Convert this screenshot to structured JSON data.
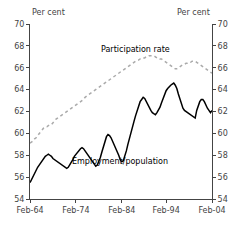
{
  "chart_data": {
    "type": "line",
    "ylabel": "Per cent",
    "y2label": "Per cent",
    "categories": [
      "Feb-64",
      null,
      null,
      null,
      null,
      null,
      null,
      null,
      null,
      null,
      null,
      null,
      null,
      null,
      null,
      null,
      null,
      null,
      null,
      null,
      null,
      null,
      null,
      null,
      null,
      null,
      null,
      null,
      null,
      null,
      "Feb-74",
      null,
      null,
      null,
      null,
      null,
      null,
      null,
      null,
      null,
      null,
      null,
      null,
      null,
      null,
      null,
      null,
      null,
      null,
      null,
      null,
      null,
      null,
      null,
      null,
      null,
      null,
      null,
      null,
      null,
      "Feb-84",
      null,
      null,
      null,
      null,
      null,
      null,
      null,
      null,
      null,
      null,
      null,
      null,
      null,
      null,
      null,
      null,
      null,
      null,
      null,
      null,
      null,
      null,
      null,
      null,
      null,
      null,
      null,
      null,
      "Feb-94",
      null,
      null,
      null,
      null,
      null,
      null,
      null,
      null,
      null,
      null,
      null,
      null,
      null,
      null,
      null,
      null,
      null,
      null,
      null,
      null,
      null,
      null,
      null,
      null,
      null,
      null,
      null,
      null,
      null,
      "Feb-04"
    ],
    "series": [
      {
        "name": "Participation rate",
        "color": "#aaaaaa",
        "line_style": "dotted",
        "values": [
          59.1,
          59.2,
          59.3,
          59.5,
          59.6,
          59.8,
          60.0,
          60.1,
          60.3,
          60.5,
          60.6,
          60.6,
          60.7,
          60.8,
          60.8,
          61.0,
          61.1,
          61.3,
          61.4,
          61.5,
          61.6,
          61.7,
          61.8,
          61.9,
          62.0,
          62.1,
          62.2,
          62.3,
          62.4,
          62.5,
          62.6,
          62.7,
          62.8,
          62.9,
          63.0,
          63.1,
          63.3,
          63.4,
          63.5,
          63.6,
          63.7,
          63.8,
          63.9,
          64.0,
          64.1,
          64.2,
          64.3,
          64.4,
          64.5,
          64.6,
          64.7,
          64.8,
          64.9,
          65.0,
          65.1,
          65.2,
          65.3,
          65.4,
          65.5,
          65.6,
          65.7,
          65.8,
          65.9,
          66.0,
          66.1,
          66.2,
          66.3,
          66.4,
          66.5,
          66.6,
          66.7,
          66.7,
          66.8,
          66.8,
          66.9,
          66.9,
          67.0,
          67.0,
          67.1,
          67.1,
          67.1,
          67.1,
          67.0,
          66.9,
          66.9,
          66.8,
          66.8,
          66.7,
          66.6,
          66.5,
          66.4,
          66.3,
          66.2,
          66.1,
          66.0,
          65.9,
          65.9,
          66.0,
          66.1,
          66.2,
          66.3,
          66.3,
          66.4,
          66.4,
          66.5,
          66.5,
          66.6,
          66.6,
          66.6,
          66.5,
          66.4,
          66.3,
          66.2,
          66.1,
          66.0,
          65.9,
          65.8,
          65.7,
          65.6,
          65.5
        ]
      },
      {
        "name": "Employment/population",
        "color": "#000000",
        "line_style": "solid",
        "values": [
          55.5,
          55.8,
          56.1,
          56.4,
          56.7,
          56.9,
          57.1,
          57.3,
          57.6,
          57.8,
          57.9,
          58.0,
          58.1,
          58.0,
          57.9,
          57.7,
          57.6,
          57.5,
          57.4,
          57.3,
          57.2,
          57.1,
          57.0,
          56.9,
          56.8,
          56.9,
          57.1,
          57.3,
          57.6,
          57.9,
          58.1,
          58.3,
          58.5,
          58.6,
          58.7,
          58.6,
          58.4,
          58.2,
          58.0,
          57.8,
          57.6,
          57.4,
          57.2,
          57.0,
          57.1,
          57.4,
          57.8,
          58.3,
          58.8,
          59.3,
          59.7,
          59.9,
          59.8,
          59.6,
          59.3,
          59.0,
          58.7,
          58.4,
          58.0,
          57.6,
          57.4,
          57.5,
          57.9,
          58.4,
          59.0,
          59.6,
          60.1,
          60.6,
          61.1,
          61.6,
          62.1,
          62.6,
          62.9,
          63.1,
          63.3,
          63.2,
          62.9,
          62.6,
          62.3,
          62.1,
          61.9,
          61.8,
          61.7,
          61.9,
          62.1,
          62.4,
          62.8,
          63.2,
          63.6,
          63.9,
          64.1,
          64.3,
          64.4,
          64.5,
          64.6,
          64.4,
          64.1,
          63.6,
          63.1,
          62.6,
          62.3,
          62.1,
          62.0,
          61.9,
          61.8,
          61.7,
          61.6,
          61.5,
          61.4,
          62.1,
          62.6,
          62.9,
          63.1,
          63.1,
          62.9,
          62.5,
          62.3,
          62.1,
          61.9,
          62.1
        ]
      }
    ],
    "ylim": [
      54,
      70
    ],
    "yticks": [
      54,
      56,
      58,
      60,
      62,
      64,
      66,
      68,
      70
    ],
    "y2lim": [
      54,
      70
    ],
    "y2ticks": [
      54,
      56,
      58,
      60,
      62,
      64,
      66,
      68,
      70
    ],
    "grid": false
  }
}
